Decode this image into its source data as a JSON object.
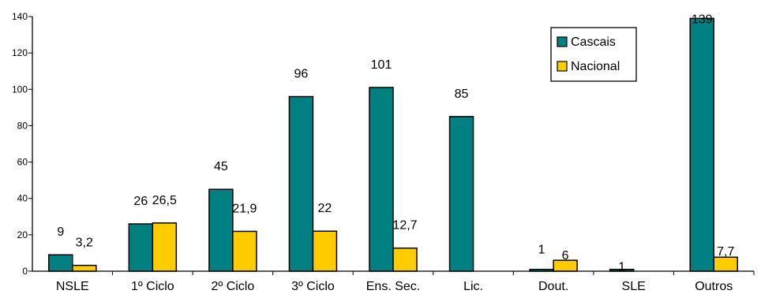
{
  "chart_data": {
    "type": "bar",
    "categories": [
      "NSLE",
      "1º Ciclo",
      "2º Ciclo",
      "3º Ciclo",
      "Ens. Sec.",
      "Lic.",
      "Dout.",
      "SLE",
      "Outros"
    ],
    "series": [
      {
        "name": "Cascais",
        "color": "#008080",
        "values": [
          9,
          26,
          45,
          96,
          101,
          85,
          1,
          1,
          139
        ],
        "labels": [
          "9",
          "26",
          "45",
          "96",
          "101",
          "85",
          "1",
          "1",
          "139"
        ]
      },
      {
        "name": "Nacional",
        "color": "#FFCC00",
        "values": [
          3.2,
          26.5,
          21.9,
          22,
          12.7,
          null,
          6,
          null,
          7.7
        ],
        "labels": [
          "3,2",
          "26,5",
          "21,9",
          "22",
          "12,7",
          "",
          "6",
          "",
          "7,7"
        ]
      }
    ],
    "ylim": [
      0,
      140
    ],
    "yticks": [
      0,
      20,
      40,
      60,
      80,
      100,
      120,
      140
    ],
    "grid": false,
    "legend_position": "top-right",
    "title": "",
    "xlabel": "",
    "ylabel": ""
  }
}
